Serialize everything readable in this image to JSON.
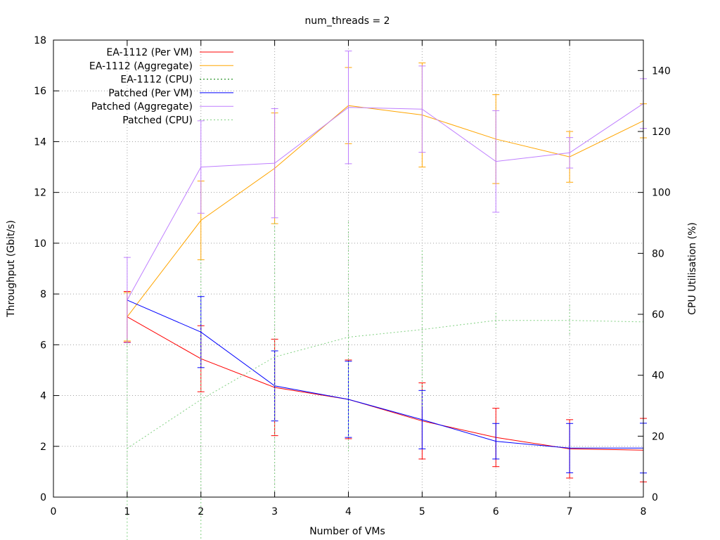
{
  "chart_data": {
    "type": "line",
    "title": "num_threads = 2",
    "xlabel": "Number of VMs",
    "ylabel": "Throughput (Gbit/s)",
    "y2label": "CPU Utilisation (%)",
    "xlim": [
      0,
      8
    ],
    "ylim": [
      0,
      18
    ],
    "y2lim": [
      0,
      150
    ],
    "xticks": [
      0,
      1,
      2,
      3,
      4,
      5,
      6,
      7,
      8
    ],
    "yticks": [
      0,
      2,
      4,
      6,
      8,
      10,
      12,
      14,
      16,
      18
    ],
    "y2ticks": [
      0,
      20,
      40,
      60,
      80,
      100,
      120,
      140
    ],
    "grid": true,
    "legend_position": "top-left",
    "x": [
      1,
      2,
      3,
      4,
      5,
      6,
      7,
      8
    ],
    "series": [
      {
        "name": "EA-1112 (Per VM)",
        "axis": "y",
        "color": "#ff0000",
        "style": "solid",
        "values": [
          7.1,
          5.45,
          4.32,
          3.85,
          3.0,
          2.35,
          1.9,
          1.85
        ],
        "errors": [
          1.0,
          1.3,
          1.9,
          1.55,
          1.5,
          1.15,
          1.15,
          1.25
        ]
      },
      {
        "name": "EA-1112 (Aggregate)",
        "axis": "y",
        "color": "#ffa500",
        "style": "solid",
        "values": [
          7.1,
          10.9,
          12.95,
          15.42,
          15.05,
          14.1,
          13.4,
          14.82
        ],
        "errors": [
          0.95,
          1.55,
          2.18,
          1.5,
          2.05,
          1.75,
          1.0,
          0.67
        ]
      },
      {
        "name": "EA-1112 (CPU)",
        "axis": "y2",
        "color": "#008000",
        "style": "dotted",
        "values": [
          null,
          null,
          null,
          null,
          null,
          null,
          null,
          null
        ],
        "errors": [
          null,
          null,
          null,
          null,
          null,
          null,
          null,
          null
        ]
      },
      {
        "name": "Patched (Per VM)",
        "axis": "y",
        "color": "#0000ff",
        "style": "solid",
        "values": [
          7.76,
          6.5,
          4.38,
          3.85,
          3.05,
          2.2,
          1.93,
          1.93
        ],
        "errors": [
          null,
          1.4,
          1.38,
          1.5,
          1.15,
          0.7,
          0.97,
          0.98
        ]
      },
      {
        "name": "Patched (Aggregate)",
        "axis": "y",
        "color": "#bf7fff",
        "style": "solid",
        "values": [
          7.76,
          13.0,
          13.15,
          15.35,
          15.28,
          13.22,
          13.56,
          15.5
        ],
        "errors": [
          1.68,
          1.82,
          2.15,
          2.22,
          1.7,
          2.0,
          0.6,
          0.98
        ]
      },
      {
        "name": "Patched (CPU)",
        "axis": "y2",
        "color": "#80d080",
        "style": "dotted",
        "values": [
          16,
          32,
          46,
          52.5,
          55,
          58,
          58,
          57.5
        ],
        "errors": [
          36,
          46,
          44,
          38,
          26,
          2.5,
          5,
          2.5
        ]
      }
    ]
  }
}
